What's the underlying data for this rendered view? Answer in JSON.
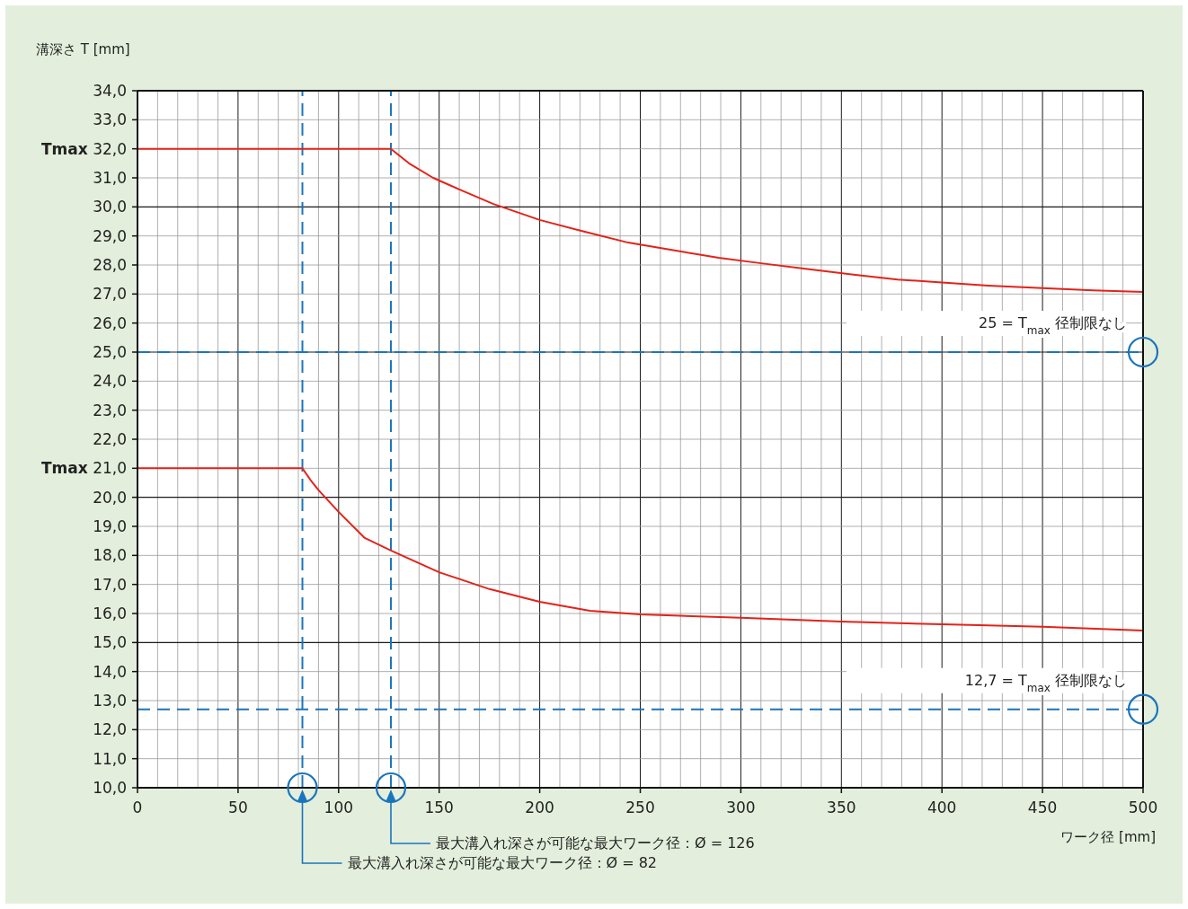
{
  "chart_data": {
    "type": "line",
    "xlabel": "ワーク径 [mm]",
    "ylabel": "溝深さ T [mm]",
    "xlim": [
      0,
      500
    ],
    "ylim": [
      10,
      34
    ],
    "xticks": [
      0,
      50,
      100,
      150,
      200,
      250,
      300,
      350,
      400,
      450,
      500
    ],
    "yticks": [
      {
        "value": 10,
        "label": "10,0"
      },
      {
        "value": 11,
        "label": "11,0"
      },
      {
        "value": 12,
        "label": "12,0"
      },
      {
        "value": 13,
        "label": "13,0"
      },
      {
        "value": 14,
        "label": "14,0"
      },
      {
        "value": 15,
        "label": "15,0"
      },
      {
        "value": 16,
        "label": "16,0"
      },
      {
        "value": 17,
        "label": "17,0"
      },
      {
        "value": 18,
        "label": "18,0"
      },
      {
        "value": 19,
        "label": "19,0"
      },
      {
        "value": 20,
        "label": "20,0"
      },
      {
        "value": 21,
        "label": "**Tmax** 21,0"
      },
      {
        "value": 22,
        "label": "22,0"
      },
      {
        "value": 23,
        "label": "23,0"
      },
      {
        "value": 24,
        "label": "24,0"
      },
      {
        "value": 25,
        "label": "25,0"
      },
      {
        "value": 26,
        "label": "26,0"
      },
      {
        "value": 27,
        "label": "27,0"
      },
      {
        "value": 28,
        "label": "28,0"
      },
      {
        "value": 29,
        "label": "29,0"
      },
      {
        "value": 30,
        "label": "30,0"
      },
      {
        "value": 31,
        "label": "31,0"
      },
      {
        "value": 32,
        "label": "**Tmax** 32,0"
      },
      {
        "value": 33,
        "label": "33,0"
      },
      {
        "value": 34,
        "label": "34,0"
      }
    ],
    "grid": true,
    "series": [
      {
        "color": "#e2231a",
        "x": [
          0,
          126,
          135,
          147,
          160,
          177,
          200,
          222,
          244,
          267,
          289,
          311,
          334,
          356,
          378,
          400,
          423,
          450,
          475,
          500
        ],
        "values": [
          32,
          32,
          31.5,
          31,
          30.6,
          30.1,
          29.55,
          29.15,
          28.77,
          28.5,
          28.25,
          28.05,
          27.85,
          27.67,
          27.5,
          27.4,
          27.29,
          27.2,
          27.13,
          27.07
        ]
      },
      {
        "color": "#e2231a",
        "x": [
          0,
          82,
          86,
          90,
          100,
          113,
          126,
          150,
          175,
          200,
          225,
          250,
          300,
          350,
          400,
          450,
          500
        ],
        "values": [
          21,
          21,
          20.6,
          20.25,
          19.5,
          18.6,
          18.17,
          17.42,
          16.84,
          16.4,
          16.09,
          15.97,
          15.85,
          15.72,
          15.63,
          15.54,
          15.41
        ]
      }
    ],
    "ref_lines": [
      {
        "axis": "y",
        "value": 25,
        "label": "25 = T$_{max}$ 径制限なし",
        "color": "#1a75bc",
        "line_style": "dashed"
      },
      {
        "axis": "y",
        "value": 12.7,
        "label": "12,7 = T$_{max}$ 径制限なし",
        "color": "#1a75bc",
        "line_style": "dashed"
      },
      {
        "axis": "x",
        "value": 126,
        "color": "#1a75bc",
        "line_style": "dashed"
      },
      {
        "axis": "x",
        "value": 82,
        "color": "#1a75bc",
        "line_style": "dashed"
      }
    ],
    "annotations": [
      "最大溝入れ深さが可能な最大ワーク径：Ø = 126",
      "最大溝入れ深さが可能な最大ワーク径：Ø = 82"
    ]
  }
}
